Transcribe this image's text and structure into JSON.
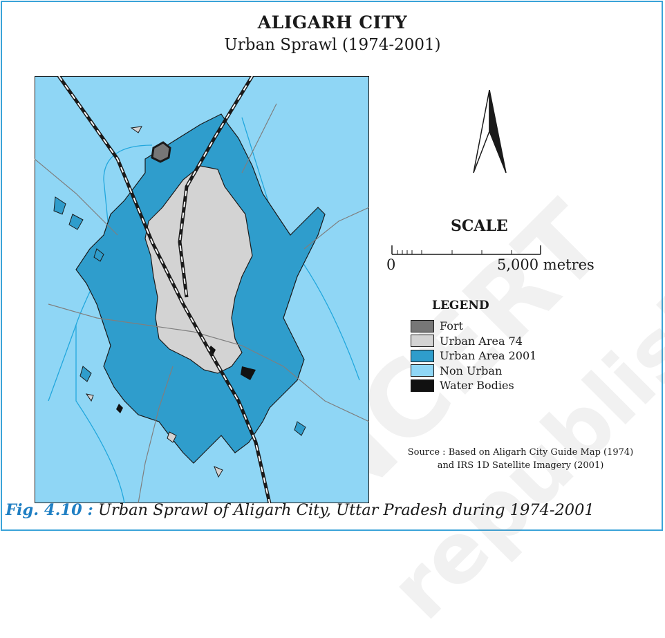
{
  "title": "ALIGARH CITY",
  "subtitle": "Urban Sprawl (1974-2001)",
  "scale": {
    "title": "SCALE",
    "zero_label": "0",
    "end_label": "5,000 metres"
  },
  "legend": {
    "title": "LEGEND",
    "items": [
      {
        "label": "Fort",
        "color": "#777777"
      },
      {
        "label": "Urban Area 74",
        "color": "#d3d3d3"
      },
      {
        "label": "Urban Area 2001",
        "color": "#2f9dcc"
      },
      {
        "label": "Non Urban",
        "color": "#8fd6f5"
      },
      {
        "label": "Water Bodies",
        "color": "#111111"
      }
    ]
  },
  "source": {
    "line1": "Source : Based on Aligarh City Guide Map (1974)",
    "line2": "and IRS 1D Satellite Imagery (2001)"
  },
  "caption": {
    "fig": "Fig. 4.10 :",
    "text": " Urban Sprawl of Aligarh City, Uttar Pradesh during 1974-2001"
  },
  "watermarks": [
    "NCERT",
    "republished"
  ],
  "colors": {
    "frame": "#3aa3d8",
    "non_urban": "#8fd6f5",
    "urban_2001": "#2f9dcc",
    "urban_74": "#d3d3d3",
    "fort": "#777777",
    "water": "#111111",
    "caption_accent": "#1f7fc3"
  }
}
